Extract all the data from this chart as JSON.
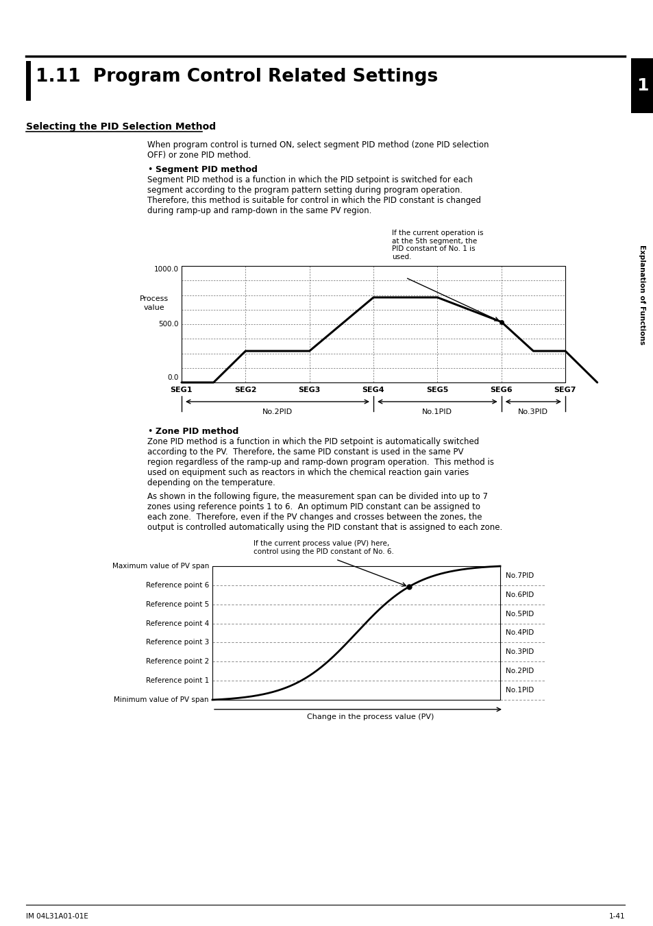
{
  "title": "1.11  Program Control Related Settings",
  "page_bg": "#ffffff",
  "section1_heading": "Selecting the PID Selection Method",
  "section1_intro": "When program control is turned ON, select segment PID method (zone PID selection\nOFF) or zone PID method.",
  "bullet1_heading": "Segment PID method",
  "bullet1_text": "Segment PID method is a function in which the PID setpoint is switched for each\nsegment according to the program pattern setting during program operation.\nTherefore, this method is suitable for control in which the PID constant is changed\nduring ramp-up and ramp-down in the same PV region.",
  "chart1_annotation": "If the current operation is\nat the 5th segment, the\nPID constant of No. 1 is\nused.",
  "chart1_ytick0": "1000.0",
  "chart1_ytick1": "500.0",
  "chart1_ytick2": "0.0",
  "chart1_ylabel1": "Process",
  "chart1_ylabel2": "value",
  "chart1_xticks": [
    "SEG1",
    "SEG2",
    "SEG3",
    "SEG4",
    "SEG5",
    "SEG6",
    "SEG7"
  ],
  "pid_labels": [
    "No.2PID",
    "No.1PID",
    "No.3PID"
  ],
  "bullet2_heading": "Zone PID method",
  "bullet2_text1": "Zone PID method is a function in which the PID setpoint is automatically switched\naccording to the PV.  Therefore, the same PID constant is used in the same PV\nregion regardless of the ramp-up and ramp-down program operation.  This method is\nused on equipment such as reactors in which the chemical reaction gain varies\ndepending on the temperature.",
  "bullet2_text2": "As shown in the following figure, the measurement span can be divided into up to 7\nzones using reference points 1 to 6.  An optimum PID constant can be assigned to\neach zone.  Therefore, even if the PV changes and crosses between the zones, the\noutput is controlled automatically using the PID constant that is assigned to each zone.",
  "chart2_annotation": "If the current process value (PV) here,\ncontrol using the PID constant of No. 6.",
  "chart2_xlabel": "Change in the process value (PV)",
  "chart2_ylabels": [
    "Maximum value of PV span",
    "Reference point 6",
    "Reference point 5",
    "Reference point 4",
    "Reference point 3",
    "Reference point 2",
    "Reference point 1",
    "Minimum value of PV span"
  ],
  "chart2_pid_labels": [
    "No.7PID",
    "No.6PID",
    "No.5PID",
    "No.4PID",
    "No.3PID",
    "No.2PID",
    "No.1PID"
  ],
  "sidebar_number": "1",
  "sidebar_text": "Explanation of Functions",
  "footer_left": "IM 04L31A01-01E",
  "footer_right": "1-41"
}
